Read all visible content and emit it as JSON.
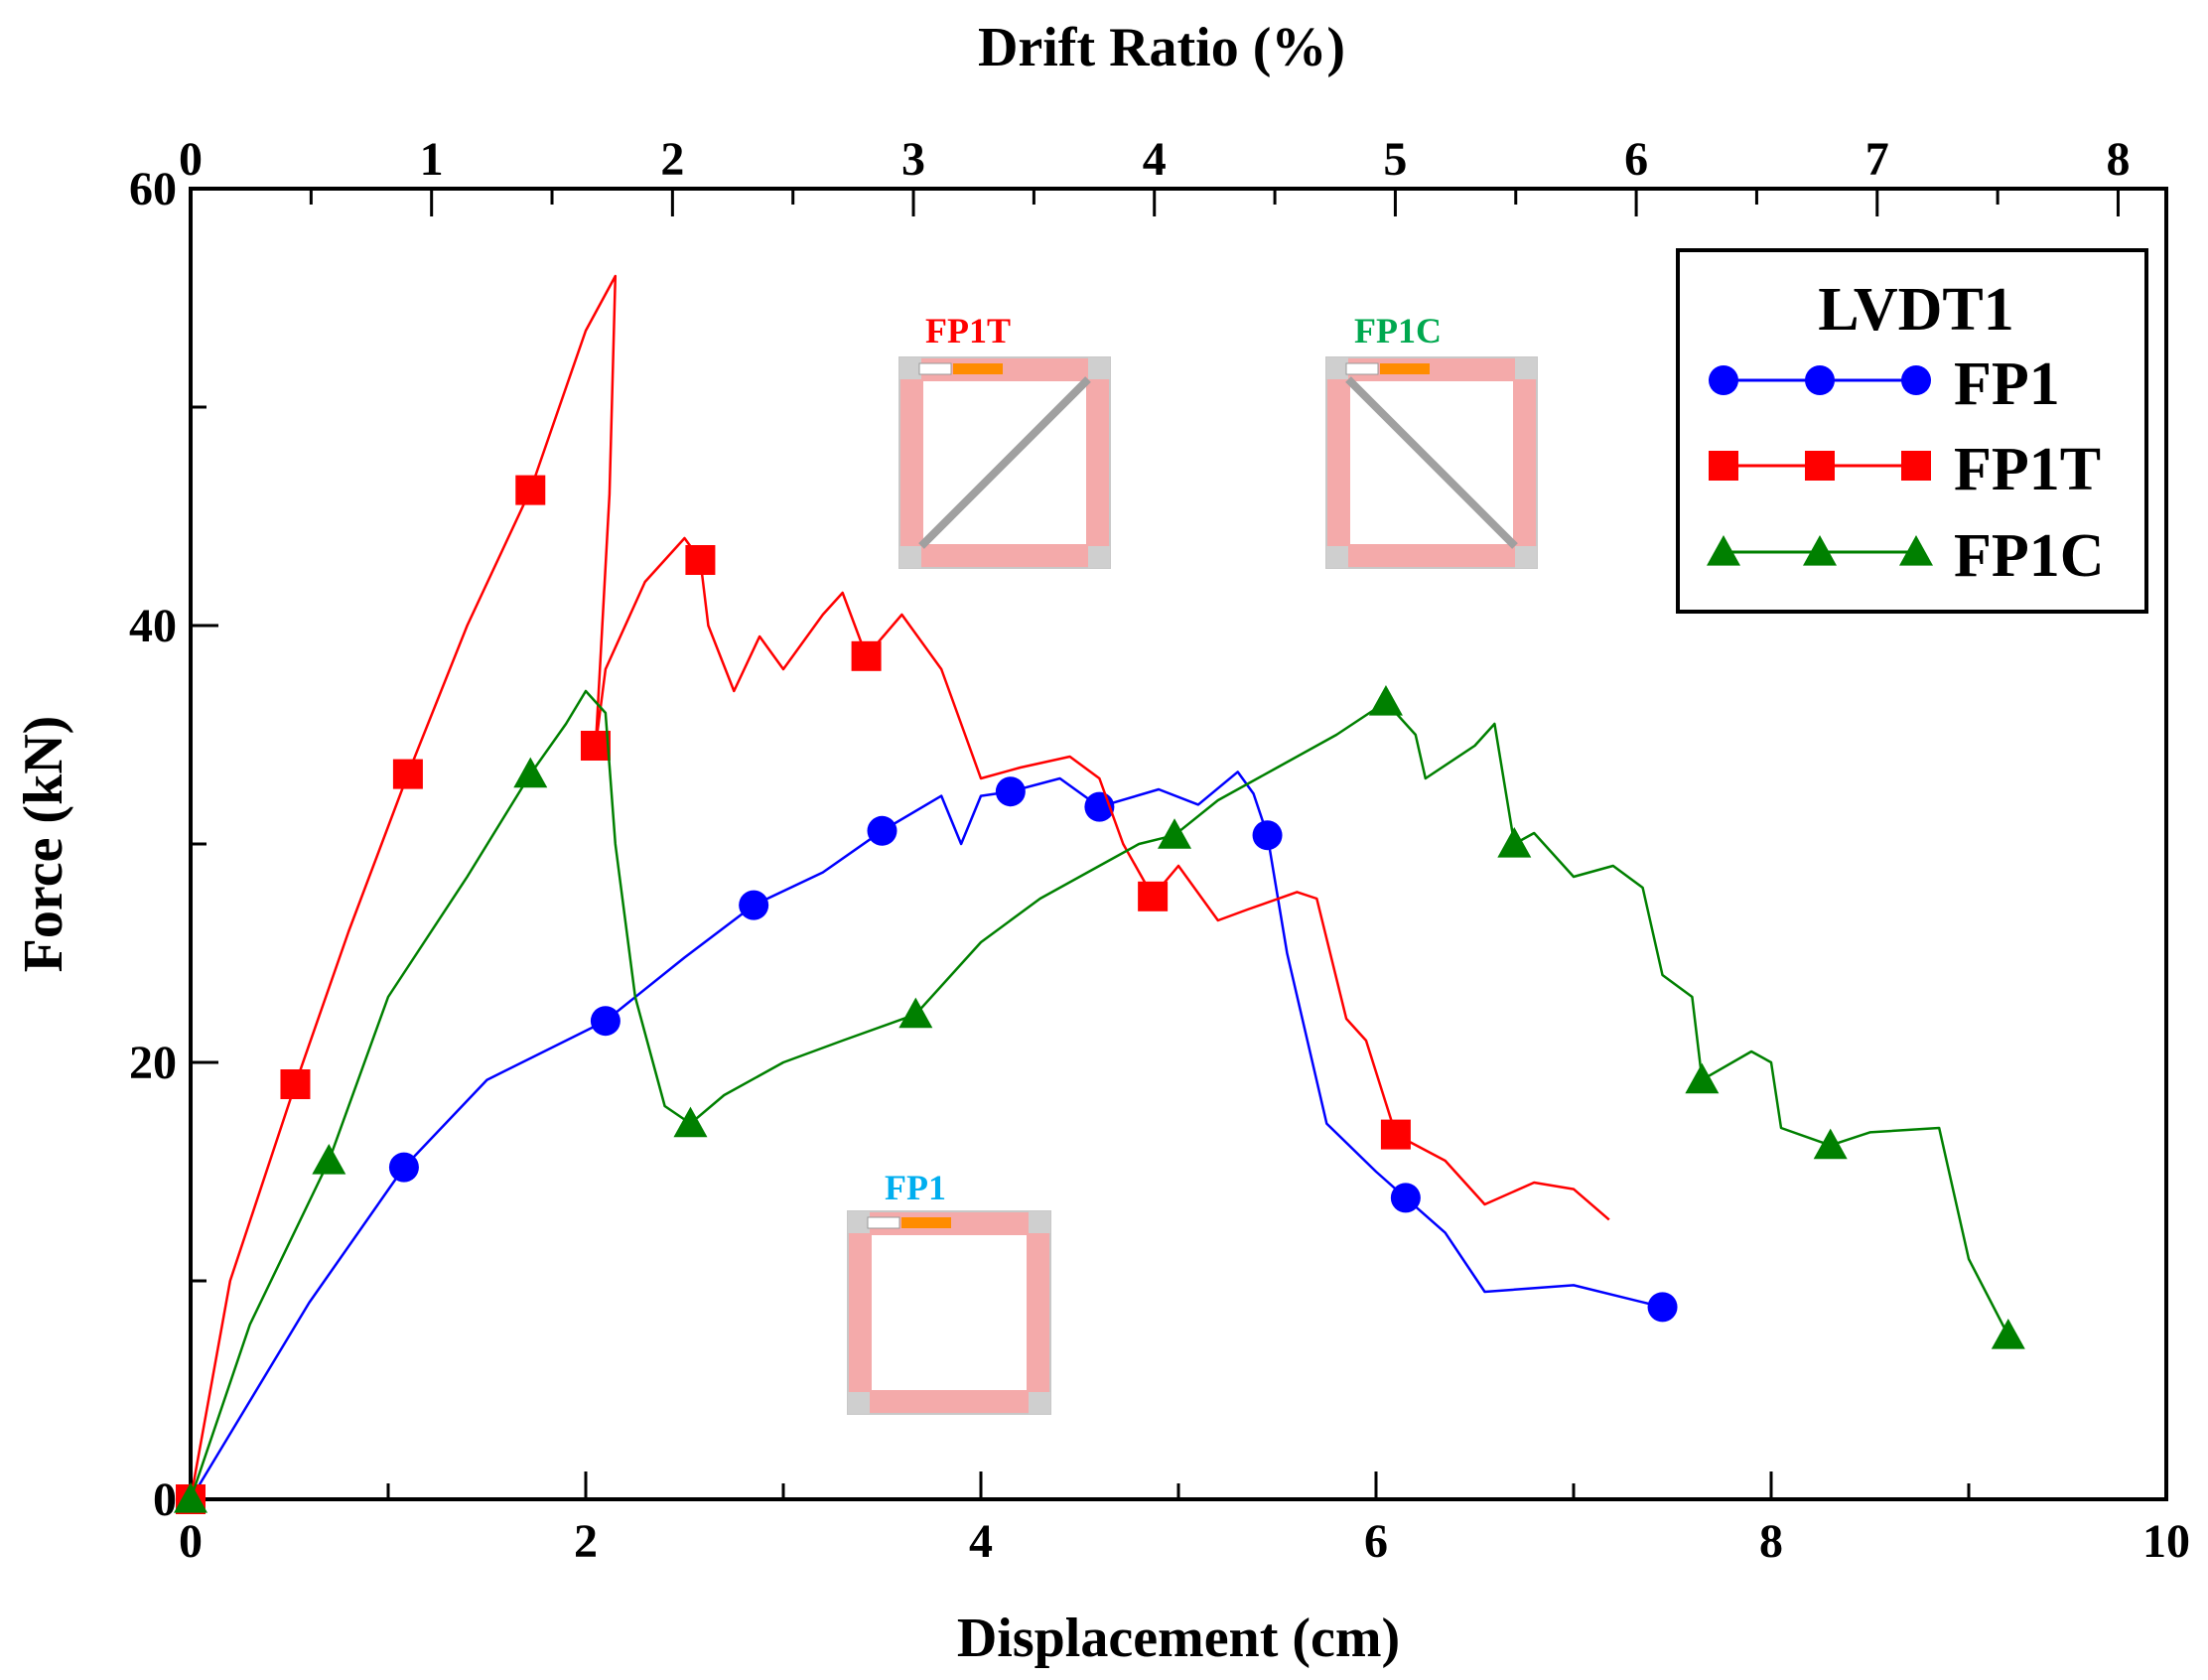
{
  "chart_data": {
    "type": "line",
    "title": "",
    "xlabel": "Displacement (cm)",
    "ylabel": "Force (kN)",
    "top_xlabel": "Drift Ratio (%)",
    "xlim": [
      0,
      10
    ],
    "ylim": [
      0,
      60
    ],
    "top_xlim": [
      0,
      8.2
    ],
    "x_ticks": [
      0,
      2,
      4,
      6,
      8,
      10
    ],
    "y_ticks": [
      0,
      20,
      40,
      60
    ],
    "top_ticks": [
      0,
      1,
      2,
      3,
      4,
      5,
      6,
      7,
      8
    ],
    "legend": {
      "title": "LVDT1",
      "position": "top-right"
    },
    "series": [
      {
        "name": "FP1",
        "color": "#0000ff",
        "marker": "circle",
        "x": [
          0,
          0.3,
          0.6,
          1.08,
          1.5,
          2.1,
          2.5,
          2.85,
          3.2,
          3.5,
          3.8,
          3.9,
          4.0,
          4.15,
          4.4,
          4.6,
          4.9,
          5.1,
          5.3,
          5.38,
          5.45,
          5.55,
          5.75,
          6.0,
          6.15,
          6.35,
          6.55,
          7.0,
          7.45
        ],
        "y": [
          0,
          4.5,
          9,
          15.2,
          19.2,
          21.9,
          24.8,
          27.2,
          28.7,
          30.6,
          32.2,
          30.0,
          32.2,
          32.4,
          33.0,
          31.7,
          32.5,
          31.8,
          33.3,
          32.3,
          30.4,
          25.0,
          17.2,
          15.0,
          13.8,
          12.2,
          9.5,
          9.8,
          8.8
        ],
        "markers_x": [
          1.08,
          2.1,
          2.85,
          3.5,
          4.15,
          4.6,
          5.45,
          6.15,
          7.45
        ],
        "markers_y": [
          15.2,
          21.9,
          27.2,
          30.6,
          32.4,
          31.7,
          30.4,
          13.8,
          8.8
        ]
      },
      {
        "name": "FP1T",
        "color": "#ff0000",
        "marker": "square",
        "x": [
          0,
          0.2,
          0.53,
          0.8,
          1.1,
          1.4,
          1.72,
          2.0,
          2.15,
          2.12,
          2.05,
          2.1,
          2.3,
          2.5,
          2.58,
          2.62,
          2.75,
          2.88,
          3.0,
          3.2,
          3.3,
          3.42,
          3.6,
          3.8,
          3.92,
          4.0,
          4.2,
          4.45,
          4.6,
          4.72,
          4.87,
          5.0,
          5.2,
          5.35,
          5.6,
          5.7,
          5.85,
          5.95,
          6.1,
          6.35,
          6.55,
          6.8,
          7.0,
          7.18
        ],
        "y": [
          0,
          10,
          19.0,
          26,
          33.2,
          40.0,
          46.2,
          53.5,
          56.0,
          46.0,
          34.5,
          38.0,
          42.0,
          44.0,
          43.0,
          40.0,
          37.0,
          39.5,
          38.0,
          40.5,
          41.5,
          38.6,
          40.5,
          38.0,
          35.0,
          33.0,
          33.5,
          34.0,
          33.0,
          30.0,
          27.6,
          29.0,
          26.5,
          27.0,
          27.8,
          27.5,
          22.0,
          21.0,
          16.7,
          15.5,
          13.5,
          14.5,
          14.2,
          12.8
        ],
        "markers_x": [
          0.53,
          1.1,
          1.72,
          2.05,
          2.58,
          3.42,
          4.87,
          6.1
        ],
        "markers_y": [
          19.0,
          33.2,
          46.2,
          34.5,
          43.0,
          38.6,
          27.6,
          16.7
        ]
      },
      {
        "name": "FP1C",
        "color": "#008000",
        "marker": "triangle",
        "x": [
          0,
          0.3,
          0.7,
          1.0,
          1.4,
          1.72,
          1.9,
          2.0,
          2.1,
          2.15,
          2.25,
          2.4,
          2.53,
          2.7,
          3.0,
          3.3,
          3.67,
          4.0,
          4.3,
          4.6,
          4.8,
          4.98,
          5.2,
          5.5,
          5.8,
          6.05,
          6.2,
          6.25,
          6.5,
          6.6,
          6.7,
          6.8,
          7.0,
          7.2,
          7.35,
          7.45,
          7.6,
          7.65,
          7.9,
          8.0,
          8.05,
          8.3,
          8.5,
          8.85,
          9.0,
          9.2
        ],
        "y": [
          0,
          8,
          15.5,
          23,
          28.5,
          33.2,
          35.5,
          37.0,
          36.0,
          30.0,
          23.0,
          18.0,
          17.2,
          18.5,
          20.0,
          21.0,
          22.2,
          25.5,
          27.5,
          29.0,
          30.0,
          30.4,
          32.0,
          33.5,
          35.0,
          36.5,
          35.0,
          33.0,
          34.5,
          35.5,
          30.0,
          30.5,
          28.5,
          29.0,
          28.0,
          24.0,
          23.0,
          19.2,
          20.5,
          20.0,
          17.0,
          16.2,
          16.8,
          17.0,
          11.0,
          7.5
        ],
        "markers_x": [
          0.7,
          1.72,
          2.53,
          3.67,
          4.98,
          6.05,
          6.7,
          7.65,
          8.3,
          9.2
        ],
        "markers_y": [
          15.5,
          33.2,
          17.2,
          22.2,
          30.4,
          36.5,
          30.0,
          19.2,
          16.2,
          7.5
        ]
      }
    ],
    "insets": [
      {
        "label": "FP1T",
        "color": "#ff0000",
        "brace": "diagonal-rising"
      },
      {
        "label": "FP1C",
        "color": "#00a84f",
        "brace": "diagonal-falling"
      },
      {
        "label": "FP1",
        "color": "#00aeef",
        "brace": "none"
      }
    ]
  }
}
